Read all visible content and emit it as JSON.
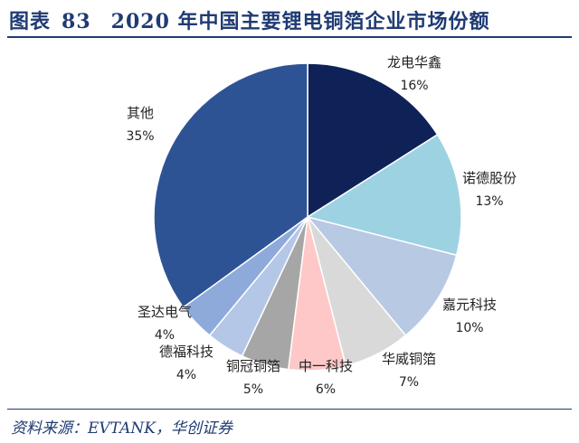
{
  "title": {
    "prefix": "图表",
    "number": "83",
    "text": "2020 年中国主要锂电铜箔企业市场份额"
  },
  "source": "资料来源：EVTANK，华创证券",
  "chart_data": {
    "type": "pie",
    "title": "2020 年中国主要锂电铜箔企业市场份额",
    "start_angle_deg": 0,
    "direction": "clockwise",
    "slices": [
      {
        "name": "龙电华鑫",
        "value": 16,
        "label": "16%",
        "color": "#0f2257"
      },
      {
        "name": "诺德股份",
        "value": 13,
        "label": "13%",
        "color": "#9dd2e2"
      },
      {
        "name": "嘉元科技",
        "value": 10,
        "label": "10%",
        "color": "#b8c9e3"
      },
      {
        "name": "华威铜箔",
        "value": 7,
        "label": "7%",
        "color": "#d9d9d9"
      },
      {
        "name": "中一科技",
        "value": 6,
        "label": "6%",
        "color": "#ffc8c8"
      },
      {
        "name": "铜冠铜箔",
        "value": 5,
        "label": "5%",
        "color": "#a6a6a6"
      },
      {
        "name": "德福科技",
        "value": 4,
        "label": "4%",
        "color": "#b4c7e7"
      },
      {
        "name": "圣达电气",
        "value": 4,
        "label": "4%",
        "color": "#8eaadb"
      },
      {
        "name": "其他",
        "value": 35,
        "label": "35%",
        "color": "#2e5395"
      }
    ]
  }
}
